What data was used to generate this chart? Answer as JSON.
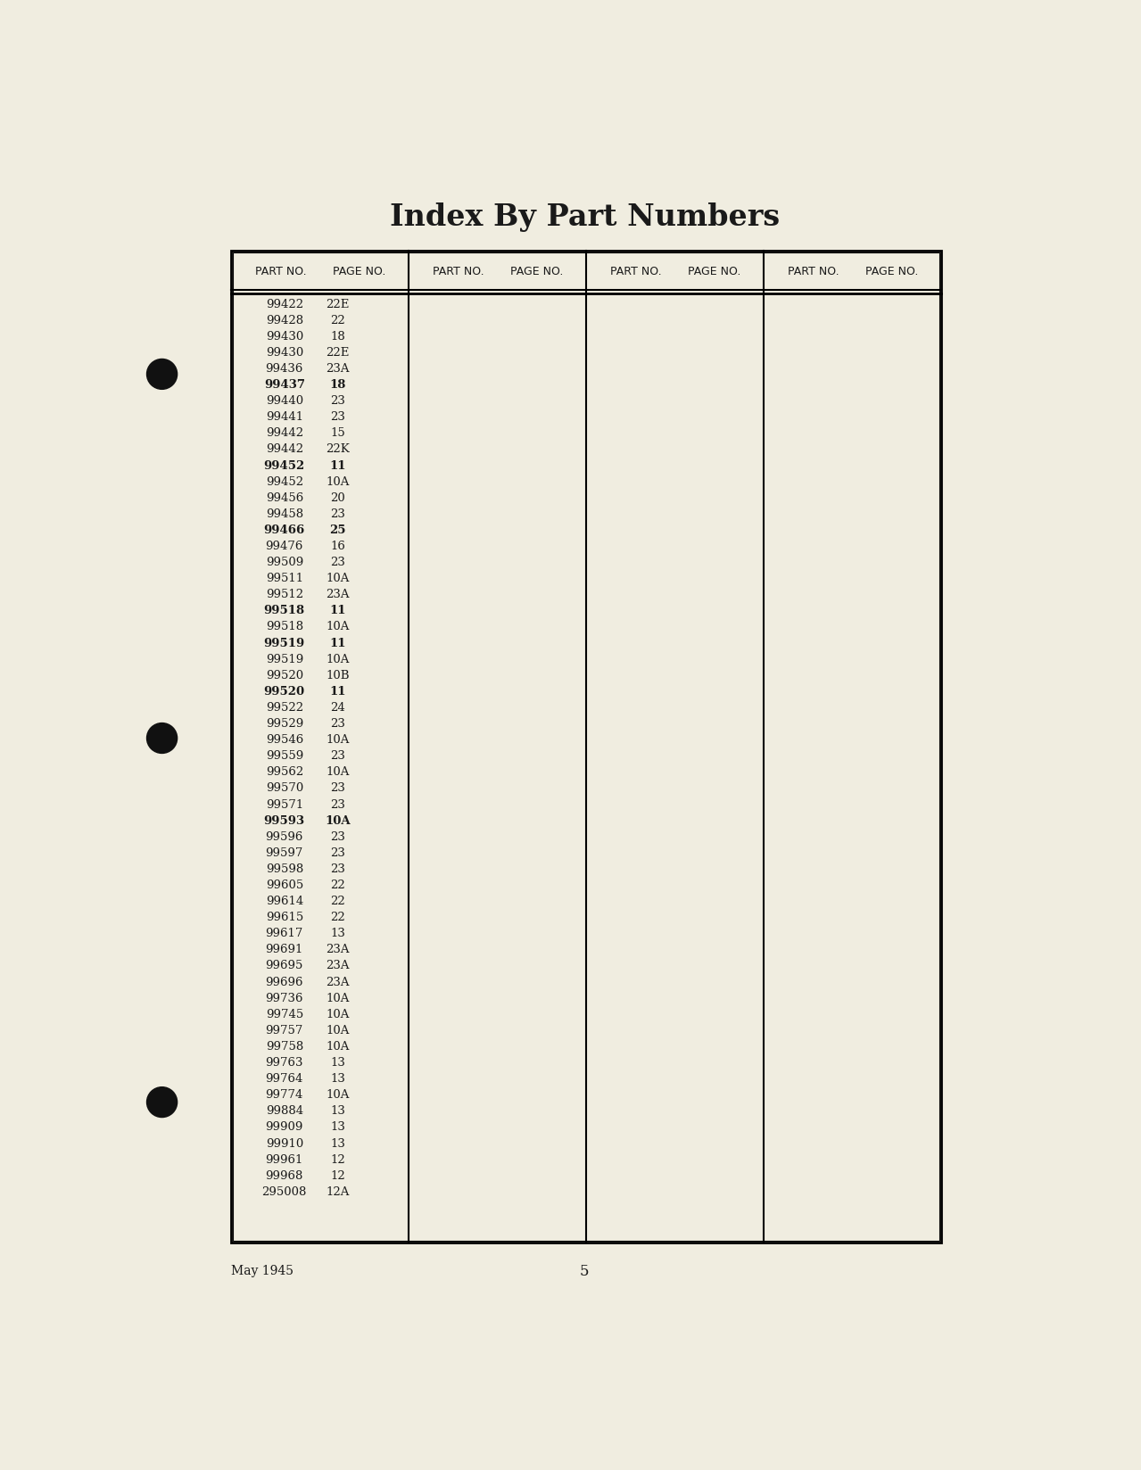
{
  "title": "Index By Part Numbers",
  "background_color": "#f0ede0",
  "data_col1": [
    [
      "99422",
      "22E",
      false
    ],
    [
      "99428",
      "22",
      false
    ],
    [
      "99430",
      "18",
      false
    ],
    [
      "99430",
      "22E",
      false
    ],
    [
      "99436",
      "23A",
      false
    ],
    [
      "99437",
      "18",
      true
    ],
    [
      "99440",
      "23",
      false
    ],
    [
      "99441",
      "23",
      false
    ],
    [
      "99442",
      "15",
      false
    ],
    [
      "99442",
      "22K",
      false
    ],
    [
      "99452",
      "11",
      true
    ],
    [
      "99452",
      "10A",
      false
    ],
    [
      "99456",
      "20",
      false
    ],
    [
      "99458",
      "23",
      false
    ],
    [
      "99466",
      "25",
      true
    ],
    [
      "99476",
      "16",
      false
    ],
    [
      "99509",
      "23",
      false
    ],
    [
      "99511",
      "10A",
      false
    ],
    [
      "99512",
      "23A",
      false
    ],
    [
      "99518",
      "11",
      true
    ],
    [
      "99518",
      "10A",
      false
    ],
    [
      "99519",
      "11",
      true
    ],
    [
      "99519",
      "10A",
      false
    ],
    [
      "99520",
      "10B",
      false
    ],
    [
      "99520",
      "11",
      true
    ],
    [
      "99522",
      "24",
      false
    ],
    [
      "99529",
      "23",
      false
    ],
    [
      "99546",
      "10A",
      false
    ],
    [
      "99559",
      "23",
      false
    ],
    [
      "99562",
      "10A",
      false
    ],
    [
      "99570",
      "23",
      false
    ],
    [
      "99571",
      "23",
      false
    ],
    [
      "99593",
      "10A",
      true
    ],
    [
      "99596",
      "23",
      false
    ],
    [
      "99597",
      "23",
      false
    ],
    [
      "99598",
      "23",
      false
    ],
    [
      "99605",
      "22",
      false
    ],
    [
      "99614",
      "22",
      false
    ],
    [
      "99615",
      "22",
      false
    ],
    [
      "99617",
      "13",
      false
    ],
    [
      "99691",
      "23A",
      false
    ],
    [
      "99695",
      "23A",
      false
    ],
    [
      "99696",
      "23A",
      false
    ],
    [
      "99736",
      "10A",
      false
    ],
    [
      "99745",
      "10A",
      false
    ],
    [
      "99757",
      "10A",
      false
    ],
    [
      "99758",
      "10A",
      false
    ],
    [
      "99763",
      "13",
      false
    ],
    [
      "99764",
      "13",
      false
    ],
    [
      "99774",
      "10A",
      false
    ],
    [
      "99884",
      "13",
      false
    ],
    [
      "99909",
      "13",
      false
    ],
    [
      "99910",
      "13",
      false
    ],
    [
      "99961",
      "12",
      false
    ],
    [
      "99968",
      "12",
      false
    ],
    [
      "295008",
      "12A",
      false
    ]
  ],
  "footer_left": "May 1945",
  "footer_center": "5"
}
